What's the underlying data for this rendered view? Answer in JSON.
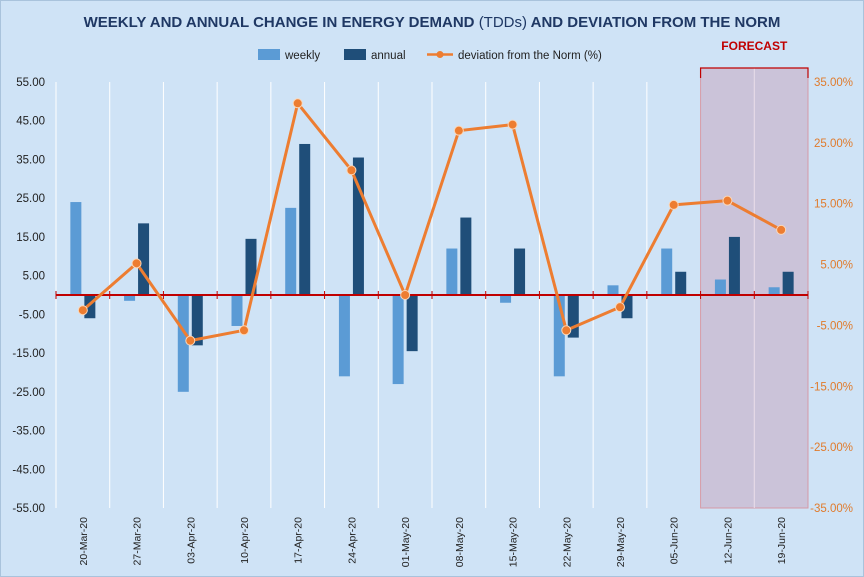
{
  "chart_data": {
    "type": "bar",
    "title": "WEEKLY AND ANNUAL CHANGE IN ENERGY DEMAND",
    "title_sub": "(TDDs)",
    "title_end": "AND DEVIATION FROM THE NORM",
    "categories": [
      "20-Mar-20",
      "27-Mar-20",
      "03-Apr-20",
      "10-Apr-20",
      "17-Apr-20",
      "24-Apr-20",
      "01-May-20",
      "08-May-20",
      "15-May-20",
      "22-May-20",
      "29-May-20",
      "05-Jun-20",
      "12-Jun-20",
      "19-Jun-20"
    ],
    "series": [
      {
        "name": "weekly",
        "type": "bar",
        "axis": "left",
        "color": "#5b9bd5",
        "values": [
          24,
          -1.5,
          -25,
          -8,
          22.5,
          -21,
          -23,
          12,
          -2,
          -21,
          2.5,
          12,
          4,
          2
        ]
      },
      {
        "name": "annual",
        "type": "bar",
        "axis": "left",
        "color": "#1f4e79",
        "values": [
          -6,
          18.5,
          -13,
          14.5,
          39,
          35.5,
          -14.5,
          20,
          12,
          -11,
          -6,
          6,
          15,
          6
        ]
      },
      {
        "name": "deviation from the Norm (%)",
        "type": "line",
        "axis": "right",
        "color": "#ed7d31",
        "values": [
          -2.5,
          5.2,
          -7.5,
          -5.8,
          31.5,
          20.5,
          0,
          27,
          28,
          -5.8,
          -2,
          14.8,
          15.5,
          10.7
        ]
      }
    ],
    "y_left": {
      "min": -55,
      "max": 55,
      "ticks": [
        "55.00",
        "45.00",
        "35.00",
        "25.00",
        "15.00",
        "5.00",
        "-5.00",
        "-15.00",
        "-25.00",
        "-35.00",
        "-45.00",
        "-55.00"
      ]
    },
    "y_right": {
      "min": -35,
      "max": 35,
      "ticks": [
        "35.00%",
        "25.00%",
        "15.00%",
        "5.00%",
        "-5.00%",
        "-15.00%",
        "-25.00%",
        "-35.00%"
      ]
    },
    "grid": "vertical",
    "legend_position": "top",
    "forecast": {
      "label": "FORECAST",
      "start_index": 12,
      "end_index": 13,
      "color": "#c00000"
    }
  }
}
